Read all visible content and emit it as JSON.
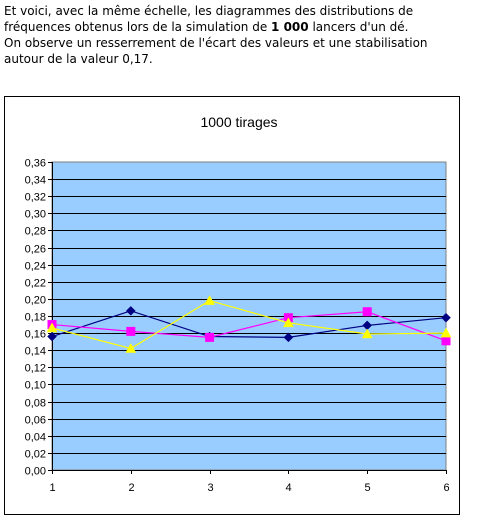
{
  "intro": {
    "line1": "Et voici, avec la même échelle, les diagrammes des distributions de",
    "line2_before": "fréquences obtenus lors de la simulation de ",
    "line2_bold": "1 000",
    "line2_after": " lancers d'un dé.",
    "line3": "On observe un resserrement de l'écart des valeurs et une stabilisation",
    "line4": "autour de la valeur 0,17."
  },
  "chart_data": {
    "type": "line",
    "title": "1000 tirages",
    "xlabel": "",
    "ylabel": "",
    "x": [
      1,
      2,
      3,
      4,
      5,
      6
    ],
    "ylim": [
      0,
      0.36
    ],
    "ystep": 0.02,
    "y_tick_labels": [
      "0,00",
      "0,02",
      "0,04",
      "0,06",
      "0,08",
      "0,10",
      "0,12",
      "0,14",
      "0,16",
      "0,18",
      "0,20",
      "0,22",
      "0,24",
      "0,26",
      "0,28",
      "0,30",
      "0,32",
      "0,34",
      "0,36"
    ],
    "grid": true,
    "legend": "none",
    "plot_background": "#99ccff",
    "series": [
      {
        "values": [
          0.156,
          0.186,
          0.156,
          0.155,
          0.169,
          0.178
        ],
        "color": "#000080",
        "marker": "diamond"
      },
      {
        "values": [
          0.17,
          0.162,
          0.155,
          0.178,
          0.185,
          0.151
        ],
        "color": "#ff00ff",
        "marker": "square"
      },
      {
        "values": [
          0.166,
          0.142,
          0.198,
          0.172,
          0.159,
          0.16
        ],
        "color": "#ffff00",
        "marker": "triangle"
      }
    ]
  }
}
